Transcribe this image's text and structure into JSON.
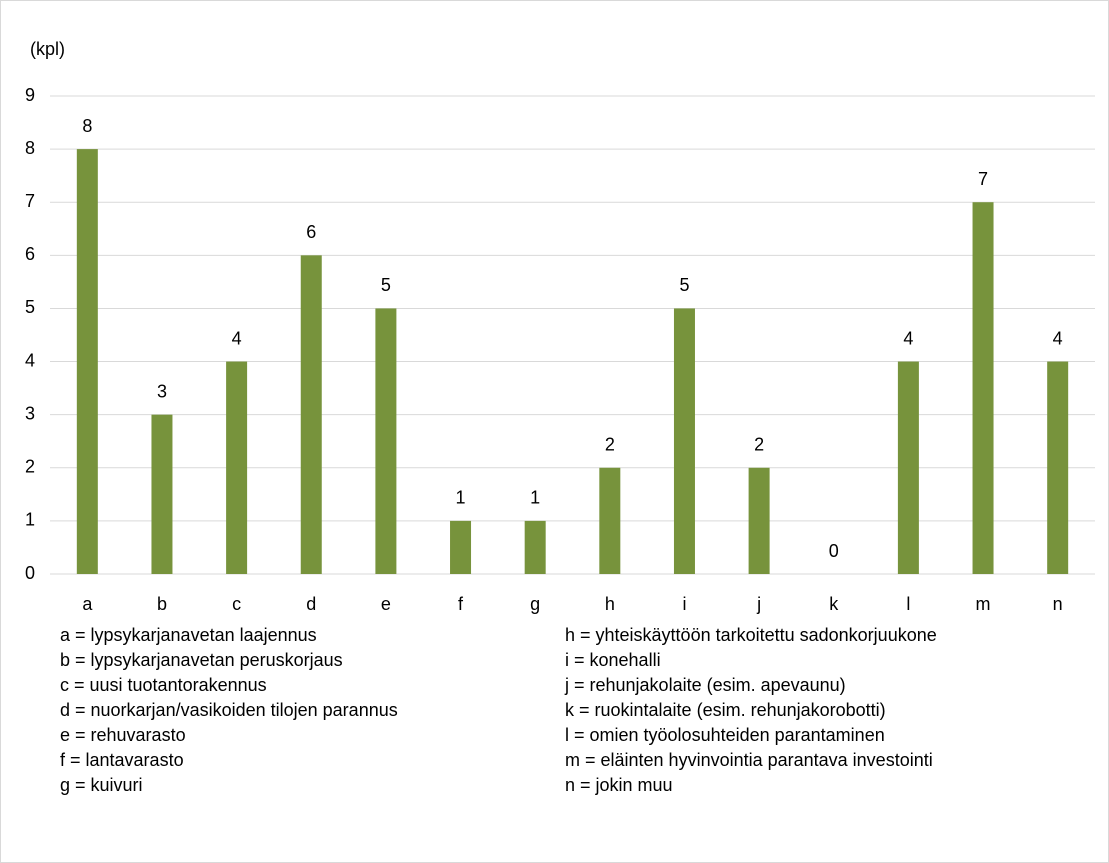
{
  "chart_data": {
    "type": "bar",
    "y_label": "(kpl)",
    "categories": [
      "a",
      "b",
      "c",
      "d",
      "e",
      "f",
      "g",
      "h",
      "i",
      "j",
      "k",
      "l",
      "m",
      "n"
    ],
    "values": [
      8,
      3,
      4,
      6,
      5,
      1,
      1,
      2,
      5,
      2,
      0,
      4,
      7,
      4
    ],
    "color": "#77933c",
    "ylim": [
      0,
      9
    ],
    "yticks": [
      0,
      1,
      2,
      3,
      4,
      5,
      6,
      7,
      8,
      9
    ],
    "grid": true,
    "notes": [
      "a = lypsykarjanavetan laajennus",
      "b = lypsykarjanavetan peruskorjaus",
      "c = uusi tuotantorakennus",
      "d = nuorkarjan/vasikoiden tilojen parannus",
      "e = rehuvarasto",
      "f = lantavarasto",
      "g = kuivuri",
      "h = yhteiskäyttöön tarkoitettu sadonkorjuukone",
      "i = konehalli",
      "j = rehunjakolaite (esim. apevaunu)",
      "k = ruokintalaite (esim. rehunjakorobotti)",
      "l = omien työolosuhteiden parantaminen",
      "m = eläinten hyvinvointia parantava investointi",
      "n = jokin muu"
    ]
  }
}
